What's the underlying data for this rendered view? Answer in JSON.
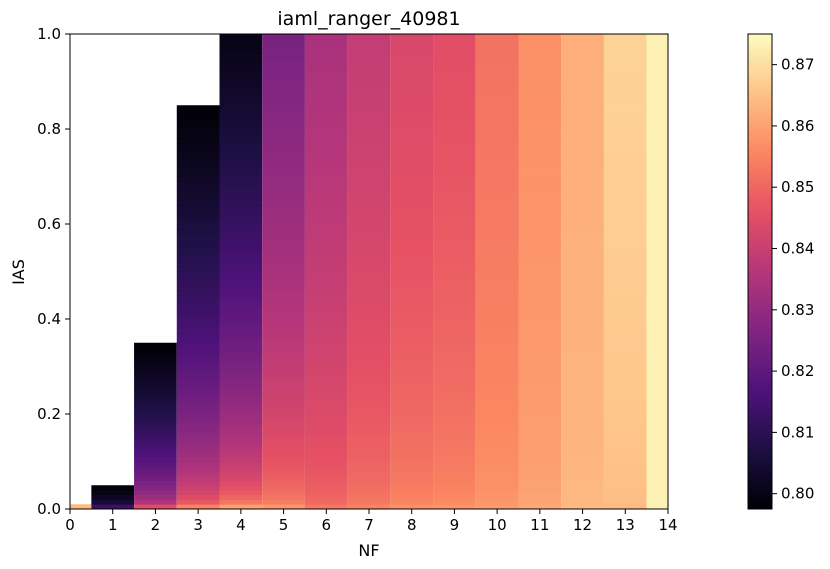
{
  "chart_data": {
    "type": "heatmap",
    "title": "iaml_ranger_40981",
    "xlabel": "NF",
    "ylabel": "IAS",
    "xlim": [
      0,
      14
    ],
    "ylim": [
      0,
      1
    ],
    "x_ticks": [
      "0",
      "1",
      "2",
      "3",
      "4",
      "5",
      "6",
      "7",
      "8",
      "9",
      "10",
      "11",
      "12",
      "13",
      "14"
    ],
    "y_ticks": [
      "0.0",
      "0.2",
      "0.4",
      "0.6",
      "0.8",
      "1.0"
    ],
    "colormap": "magma",
    "colorbar": {
      "range": [
        0.7975,
        0.875
      ],
      "ticks": [
        "0.80",
        "0.81",
        "0.82",
        "0.83",
        "0.84",
        "0.85",
        "0.86",
        "0.87"
      ]
    },
    "columns": [
      {
        "nf": 0,
        "ias_max": 0.01,
        "bottom_value": 0.864,
        "top_value": 0.864
      },
      {
        "nf": 1,
        "ias_max": 0.05,
        "bottom_value": 0.813,
        "top_value": 0.798
      },
      {
        "nf": 2,
        "ias_max": 0.35,
        "bottom_value": 0.845,
        "top_value": 0.798
      },
      {
        "nf": 3,
        "ias_max": 0.85,
        "bottom_value": 0.855,
        "top_value": 0.798
      },
      {
        "nf": 4,
        "ias_max": 1.0,
        "bottom_value": 0.86,
        "top_value": 0.8
      },
      {
        "nf": 5,
        "ias_max": 1.0,
        "bottom_value": 0.858,
        "top_value": 0.825
      },
      {
        "nf": 6,
        "ias_max": 1.0,
        "bottom_value": 0.853,
        "top_value": 0.834
      },
      {
        "nf": 7,
        "ias_max": 1.0,
        "bottom_value": 0.855,
        "top_value": 0.839
      },
      {
        "nf": 8,
        "ias_max": 1.0,
        "bottom_value": 0.857,
        "top_value": 0.843
      },
      {
        "nf": 9,
        "ias_max": 1.0,
        "bottom_value": 0.858,
        "top_value": 0.845
      },
      {
        "nf": 10,
        "ias_max": 1.0,
        "bottom_value": 0.859,
        "top_value": 0.852
      },
      {
        "nf": 11,
        "ias_max": 1.0,
        "bottom_value": 0.861,
        "top_value": 0.857
      },
      {
        "nf": 12,
        "ias_max": 1.0,
        "bottom_value": 0.864,
        "top_value": 0.862
      },
      {
        "nf": 13,
        "ias_max": 1.0,
        "bottom_value": 0.864,
        "top_value": 0.868
      },
      {
        "nf": 14,
        "ias_max": 1.0,
        "bottom_value": 0.873,
        "top_value": 0.873
      }
    ]
  }
}
